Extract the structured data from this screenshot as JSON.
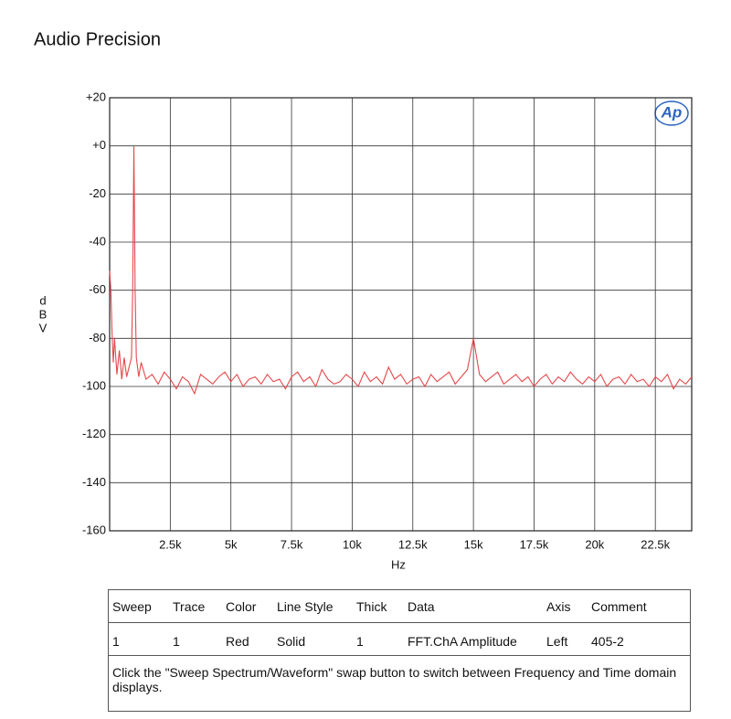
{
  "title": "Audio Precision",
  "logo": "Ap",
  "chart_data": {
    "type": "line",
    "xlabel": "Hz",
    "ylabel": "dBV",
    "color": "#e5484b",
    "grid": true,
    "xlim": [
      0,
      24000
    ],
    "xticks": [
      {
        "value": 2500,
        "label": "2.5k"
      },
      {
        "value": 5000,
        "label": "5k"
      },
      {
        "value": 7500,
        "label": "7.5k"
      },
      {
        "value": 10000,
        "label": "10k"
      },
      {
        "value": 12500,
        "label": "12.5k"
      },
      {
        "value": 15000,
        "label": "15k"
      },
      {
        "value": 17500,
        "label": "17.5k"
      },
      {
        "value": 20000,
        "label": "20k"
      },
      {
        "value": 22500,
        "label": "22.5k"
      }
    ],
    "ylim": [
      -160,
      20
    ],
    "yticks": [
      -160,
      -140,
      -120,
      -100,
      -80,
      -60,
      -40,
      -20,
      {
        "value": 0,
        "label": "+0"
      },
      {
        "value": 20,
        "label": "+20"
      }
    ],
    "x": [
      0,
      50,
      100,
      150,
      200,
      300,
      400,
      500,
      600,
      700,
      800,
      900,
      950,
      1000,
      1050,
      1100,
      1200,
      1300,
      1500,
      1750,
      2000,
      2250,
      2500,
      2750,
      3000,
      3250,
      3500,
      3750,
      4000,
      4250,
      4500,
      4750,
      5000,
      5250,
      5500,
      5750,
      6000,
      6250,
      6500,
      6750,
      7000,
      7250,
      7500,
      7750,
      8000,
      8250,
      8500,
      8750,
      9000,
      9250,
      9500,
      9750,
      10000,
      10250,
      10500,
      10750,
      11000,
      11250,
      11500,
      11750,
      12000,
      12250,
      12500,
      12750,
      13000,
      13250,
      13500,
      13750,
      14000,
      14250,
      14500,
      14750,
      15000,
      15250,
      15500,
      15750,
      16000,
      16250,
      16500,
      16750,
      17000,
      17250,
      17500,
      17750,
      18000,
      18250,
      18500,
      18750,
      19000,
      19250,
      19500,
      19750,
      20000,
      20250,
      20500,
      20750,
      21000,
      21250,
      21500,
      21750,
      22000,
      22250,
      22500,
      22750,
      23000,
      23250,
      23500,
      23750,
      24000
    ],
    "values": [
      -52,
      -60,
      -78,
      -90,
      -80,
      -95,
      -85,
      -97,
      -88,
      -96,
      -92,
      -88,
      -60,
      0,
      -60,
      -88,
      -96,
      -90,
      -97,
      -95,
      -99,
      -94,
      -97,
      -101,
      -96,
      -98,
      -103,
      -95,
      -97,
      -99,
      -96,
      -94,
      -98,
      -95,
      -100,
      -97,
      -96,
      -99,
      -95,
      -98,
      -97,
      -101,
      -96,
      -94,
      -98,
      -96,
      -100,
      -93,
      -97,
      -99,
      -98,
      -95,
      -97,
      -100,
      -94,
      -98,
      -96,
      -99,
      -92,
      -97,
      -95,
      -99,
      -97,
      -96,
      -100,
      -95,
      -98,
      -96,
      -94,
      -99,
      -96,
      -93,
      -80,
      -95,
      -98,
      -96,
      -94,
      -99,
      -97,
      -95,
      -98,
      -96,
      -100,
      -97,
      -95,
      -99,
      -96,
      -98,
      -94,
      -97,
      -99,
      -96,
      -98,
      -95,
      -100,
      -97,
      -96,
      -99,
      -95,
      -98,
      -97,
      -100,
      -96,
      -98,
      -95,
      -101,
      -97,
      -99,
      -96
    ]
  },
  "table": {
    "header": [
      "Sweep",
      "Trace",
      "Color",
      "Line Style",
      "Thick",
      "Data",
      "Axis",
      "Comment"
    ],
    "rows": [
      [
        "1",
        "1",
        "Red",
        "Solid",
        "1",
        "FFT.ChA Amplitude",
        "Left",
        "405-2"
      ]
    ]
  },
  "note": "Click the \"Sweep Spectrum/Waveform\" swap button to switch between Frequency and Time domain displays."
}
